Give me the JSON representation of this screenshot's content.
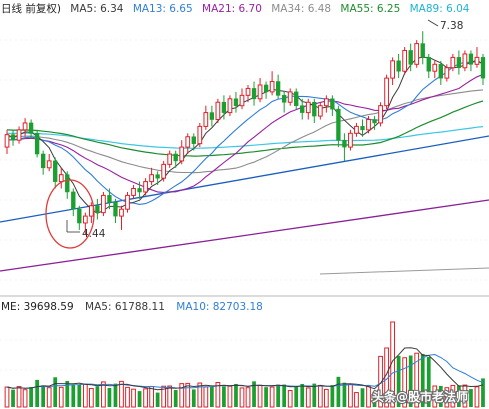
{
  "header": {
    "title": "日线 前复权)",
    "ma5": "MA5: 6.34",
    "ma13": "MA13: 6.65",
    "ma21": "MA21: 6.70",
    "ma34": "MA34: 6.48",
    "ma55": "MA55: 6.25",
    "ma89": "MA89: 6.04"
  },
  "volume_header": {
    "vol": "ME: 39698.59",
    "ma5": "MA5: 61788.11",
    "ma10": "MA10: 82703.18"
  },
  "annotations": {
    "high": "7.38",
    "low": "4.44"
  },
  "watermark": "头条@股市老法师",
  "colors": {
    "up": "#e0202a",
    "down": "#1aa031",
    "ma5": "#3a3a3a",
    "ma13": "#2f7fd6",
    "ma21": "#9b1fa3",
    "ma34": "#8c8c8c",
    "ma55": "#1e8c2e",
    "ma89": "#3bc6e3",
    "long1": "#1a5fc0",
    "long2": "#8a1f96",
    "circle": "#e23a3a"
  },
  "chart_data": {
    "type": "candlestick",
    "title": "日线 前复权",
    "price_annotations": {
      "high": 7.38,
      "low": 4.44
    },
    "moving_averages": {
      "MA5": 6.34,
      "MA13": 6.65,
      "MA21": 6.7,
      "MA34": 6.48,
      "MA55": 6.25,
      "MA89": 6.04
    },
    "volume_indicators": {
      "VOLUME": 39698.59,
      "MA5": 61788.11,
      "MA10": 82703.18
    },
    "price_range": [
      3.6,
      7.6
    ],
    "candles": [
      [
        5.7,
        5.88,
        5.6,
        5.95
      ],
      [
        5.88,
        5.8,
        5.72,
        5.95
      ],
      [
        5.8,
        5.95,
        5.75,
        6.0
      ],
      [
        5.95,
        6.05,
        5.85,
        6.12
      ],
      [
        6.05,
        5.9,
        5.82,
        6.1
      ],
      [
        5.9,
        5.6,
        5.55,
        5.95
      ],
      [
        5.6,
        5.4,
        5.3,
        5.65
      ],
      [
        5.4,
        5.5,
        5.35,
        5.6
      ],
      [
        5.5,
        5.2,
        5.1,
        5.55
      ],
      [
        5.2,
        5.3,
        5.1,
        5.4
      ],
      [
        5.3,
        5.05,
        4.95,
        5.35
      ],
      [
        5.05,
        4.8,
        4.7,
        5.1
      ],
      [
        4.8,
        4.6,
        4.5,
        4.85
      ],
      [
        4.6,
        4.7,
        4.44,
        4.75
      ],
      [
        4.7,
        4.85,
        4.6,
        4.9
      ],
      [
        4.85,
        4.75,
        4.65,
        4.95
      ],
      [
        4.75,
        5.0,
        4.7,
        5.05
      ],
      [
        5.0,
        4.9,
        4.8,
        5.1
      ],
      [
        4.9,
        4.7,
        4.6,
        4.95
      ],
      [
        4.7,
        4.8,
        4.5,
        4.85
      ],
      [
        4.8,
        5.0,
        4.75,
        5.05
      ],
      [
        5.0,
        5.1,
        4.95,
        5.15
      ],
      [
        5.1,
        5.05,
        4.95,
        5.2
      ],
      [
        5.05,
        5.2,
        5.0,
        5.25
      ],
      [
        5.2,
        5.3,
        5.15,
        5.4
      ],
      [
        5.3,
        5.25,
        5.15,
        5.35
      ],
      [
        5.25,
        5.45,
        5.2,
        5.5
      ],
      [
        5.45,
        5.6,
        5.4,
        5.65
      ],
      [
        5.6,
        5.5,
        5.4,
        5.65
      ],
      [
        5.5,
        5.7,
        5.45,
        5.8
      ],
      [
        5.7,
        5.85,
        5.6,
        5.9
      ],
      [
        5.85,
        5.75,
        5.65,
        5.9
      ],
      [
        5.75,
        6.0,
        5.7,
        6.05
      ],
      [
        6.0,
        6.2,
        5.95,
        6.3
      ],
      [
        6.2,
        6.1,
        6.0,
        6.3
      ],
      [
        6.1,
        6.35,
        6.05,
        6.4
      ],
      [
        6.35,
        6.2,
        6.1,
        6.45
      ],
      [
        6.2,
        6.4,
        6.15,
        6.45
      ],
      [
        6.4,
        6.3,
        6.2,
        6.5
      ],
      [
        6.3,
        6.45,
        6.25,
        6.55
      ],
      [
        6.45,
        6.55,
        6.35,
        6.6
      ],
      [
        6.55,
        6.4,
        6.3,
        6.65
      ],
      [
        6.4,
        6.6,
        6.35,
        6.7
      ],
      [
        6.6,
        6.5,
        6.4,
        6.65
      ],
      [
        6.5,
        6.65,
        6.45,
        6.8
      ],
      [
        6.65,
        6.45,
        6.4,
        6.75
      ],
      [
        6.45,
        6.35,
        6.2,
        6.5
      ],
      [
        6.35,
        6.5,
        6.3,
        6.55
      ],
      [
        6.5,
        6.3,
        6.25,
        6.55
      ],
      [
        6.3,
        6.2,
        6.1,
        6.4
      ],
      [
        6.2,
        6.35,
        6.1,
        6.4
      ],
      [
        6.35,
        6.15,
        6.05,
        6.4
      ],
      [
        6.15,
        6.3,
        6.1,
        6.35
      ],
      [
        6.3,
        6.4,
        6.2,
        6.45
      ],
      [
        6.4,
        6.25,
        6.15,
        6.45
      ],
      [
        6.25,
        5.8,
        5.7,
        6.3
      ],
      [
        5.8,
        5.7,
        5.5,
        5.9
      ],
      [
        5.7,
        5.9,
        5.65,
        5.95
      ],
      [
        5.9,
        6.0,
        5.85,
        6.05
      ],
      [
        6.0,
        5.95,
        5.85,
        6.1
      ],
      [
        5.95,
        6.1,
        5.9,
        6.15
      ],
      [
        6.1,
        6.05,
        5.95,
        6.15
      ],
      [
        6.05,
        6.3,
        6.0,
        6.35
      ],
      [
        6.3,
        6.7,
        6.25,
        6.75
      ],
      [
        6.7,
        6.95,
        6.6,
        7.0
      ],
      [
        6.95,
        6.8,
        6.7,
        7.05
      ],
      [
        6.8,
        7.1,
        6.75,
        7.15
      ],
      [
        7.1,
        6.9,
        6.8,
        7.2
      ],
      [
        6.9,
        7.2,
        6.85,
        7.25
      ],
      [
        7.2,
        7.0,
        6.9,
        7.38
      ],
      [
        7.0,
        6.8,
        6.7,
        7.05
      ],
      [
        6.8,
        6.9,
        6.7,
        6.95
      ],
      [
        6.9,
        6.7,
        6.6,
        6.95
      ],
      [
        6.7,
        6.85,
        6.65,
        6.9
      ],
      [
        6.85,
        7.0,
        6.8,
        7.05
      ],
      [
        7.0,
        6.85,
        6.75,
        7.1
      ],
      [
        6.85,
        7.05,
        6.8,
        7.1
      ],
      [
        7.05,
        6.9,
        6.8,
        7.1
      ],
      [
        6.9,
        7.0,
        6.85,
        7.15
      ],
      [
        7.0,
        6.7,
        6.6,
        7.05
      ]
    ]
  }
}
